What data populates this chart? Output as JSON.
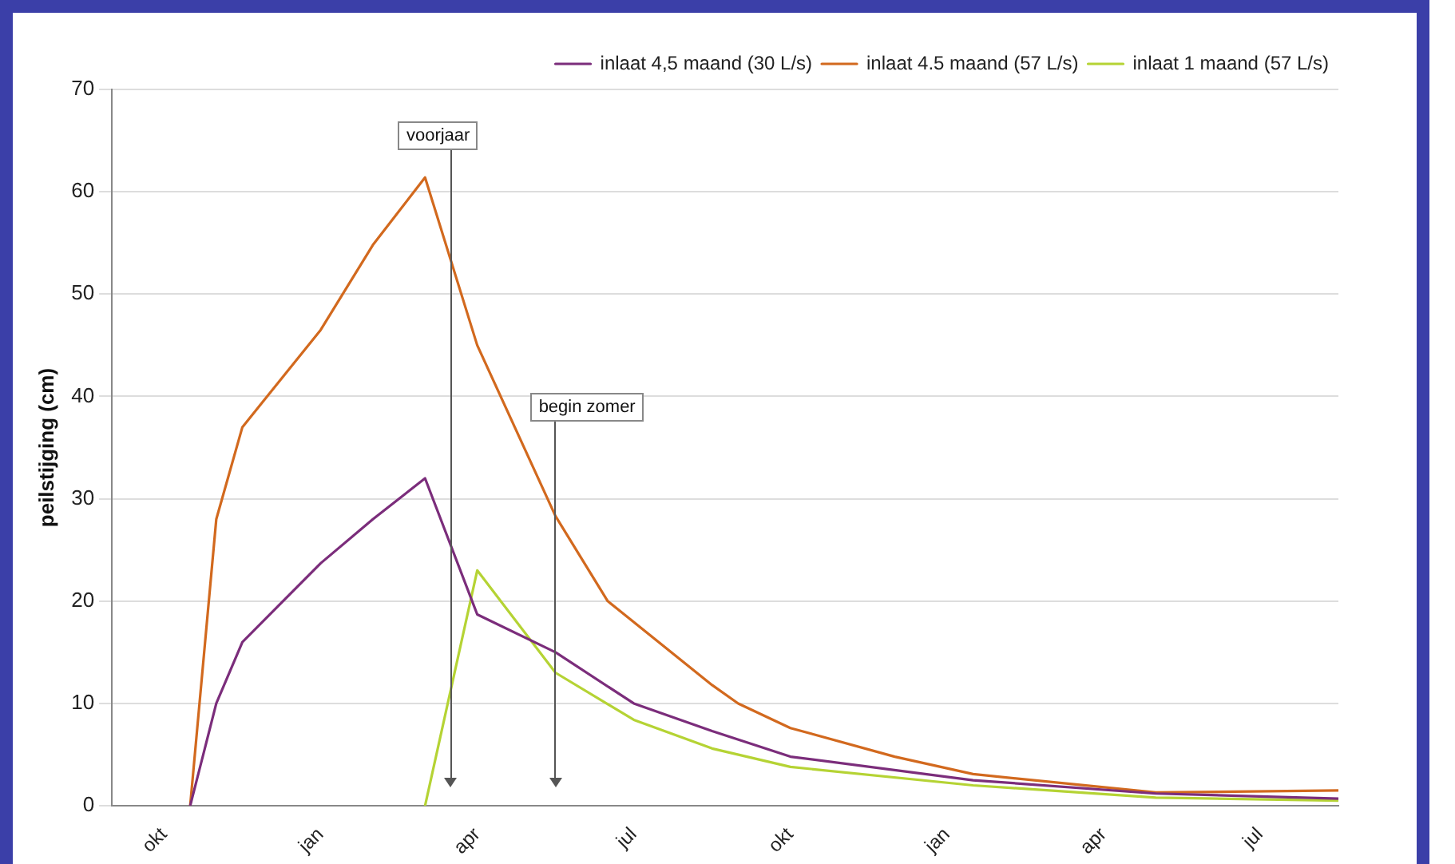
{
  "chart_data": {
    "type": "line",
    "ylabel": "peilstijging (cm)",
    "categories": [
      null,
      null,
      "okt",
      null,
      null,
      null,
      null,
      null,
      "jan",
      null,
      null,
      null,
      null,
      null,
      "apr",
      null,
      null,
      null,
      null,
      null,
      "jul",
      null,
      null,
      null,
      null,
      null,
      "okt",
      null,
      null,
      null,
      null,
      null,
      "jan",
      null,
      null,
      null,
      null,
      null,
      "apr",
      null,
      null,
      null,
      null,
      null,
      "jul",
      null,
      null,
      null
    ],
    "ylim": [
      0,
      70
    ],
    "yticks": [
      0,
      10,
      20,
      30,
      40,
      50,
      60,
      70
    ],
    "grid": "y",
    "legend": "top right",
    "marker": "none",
    "line_style": "solid",
    "series": [
      {
        "name": "inlaat 4,5 maand (30 L/s)",
        "color": "#7b2d7b",
        "values": [
          null,
          null,
          null,
          0,
          10,
          16,
          null,
          null,
          23.7,
          null,
          28,
          null,
          32,
          null,
          18.7,
          null,
          null,
          15,
          null,
          null,
          10,
          null,
          null,
          7.3,
          null,
          null,
          4.8,
          null,
          null,
          null,
          null,
          null,
          null,
          2.5,
          null,
          null,
          null,
          null,
          null,
          null,
          1.2,
          null,
          null,
          null,
          null,
          null,
          null,
          0.7
        ]
      },
      {
        "name": "inlaat 4.5 maand (57 L/s)",
        "color": "#d2691e",
        "values": [
          null,
          null,
          null,
          0,
          28,
          37,
          null,
          null,
          46.5,
          null,
          54.8,
          null,
          61.4,
          null,
          45,
          null,
          null,
          28.3,
          null,
          20,
          null,
          null,
          null,
          11.8,
          10,
          null,
          7.6,
          null,
          null,
          null,
          4.8,
          null,
          null,
          3.1,
          null,
          null,
          null,
          null,
          null,
          null,
          1.3,
          null,
          null,
          null,
          null,
          null,
          null,
          1.5
        ]
      },
      {
        "name": "inlaat 1 maand (57 L/s)",
        "color": "#b5d334",
        "values": [
          null,
          null,
          null,
          null,
          null,
          null,
          null,
          null,
          null,
          null,
          null,
          null,
          0,
          null,
          23,
          null,
          null,
          13,
          null,
          null,
          8.4,
          null,
          null,
          5.6,
          null,
          null,
          3.8,
          null,
          null,
          null,
          null,
          null,
          null,
          2,
          null,
          null,
          null,
          null,
          null,
          null,
          0.8,
          null,
          null,
          null,
          null,
          null,
          null,
          0.5
        ]
      }
    ],
    "annotations": [
      "voorjaar",
      "begin zomer"
    ]
  }
}
